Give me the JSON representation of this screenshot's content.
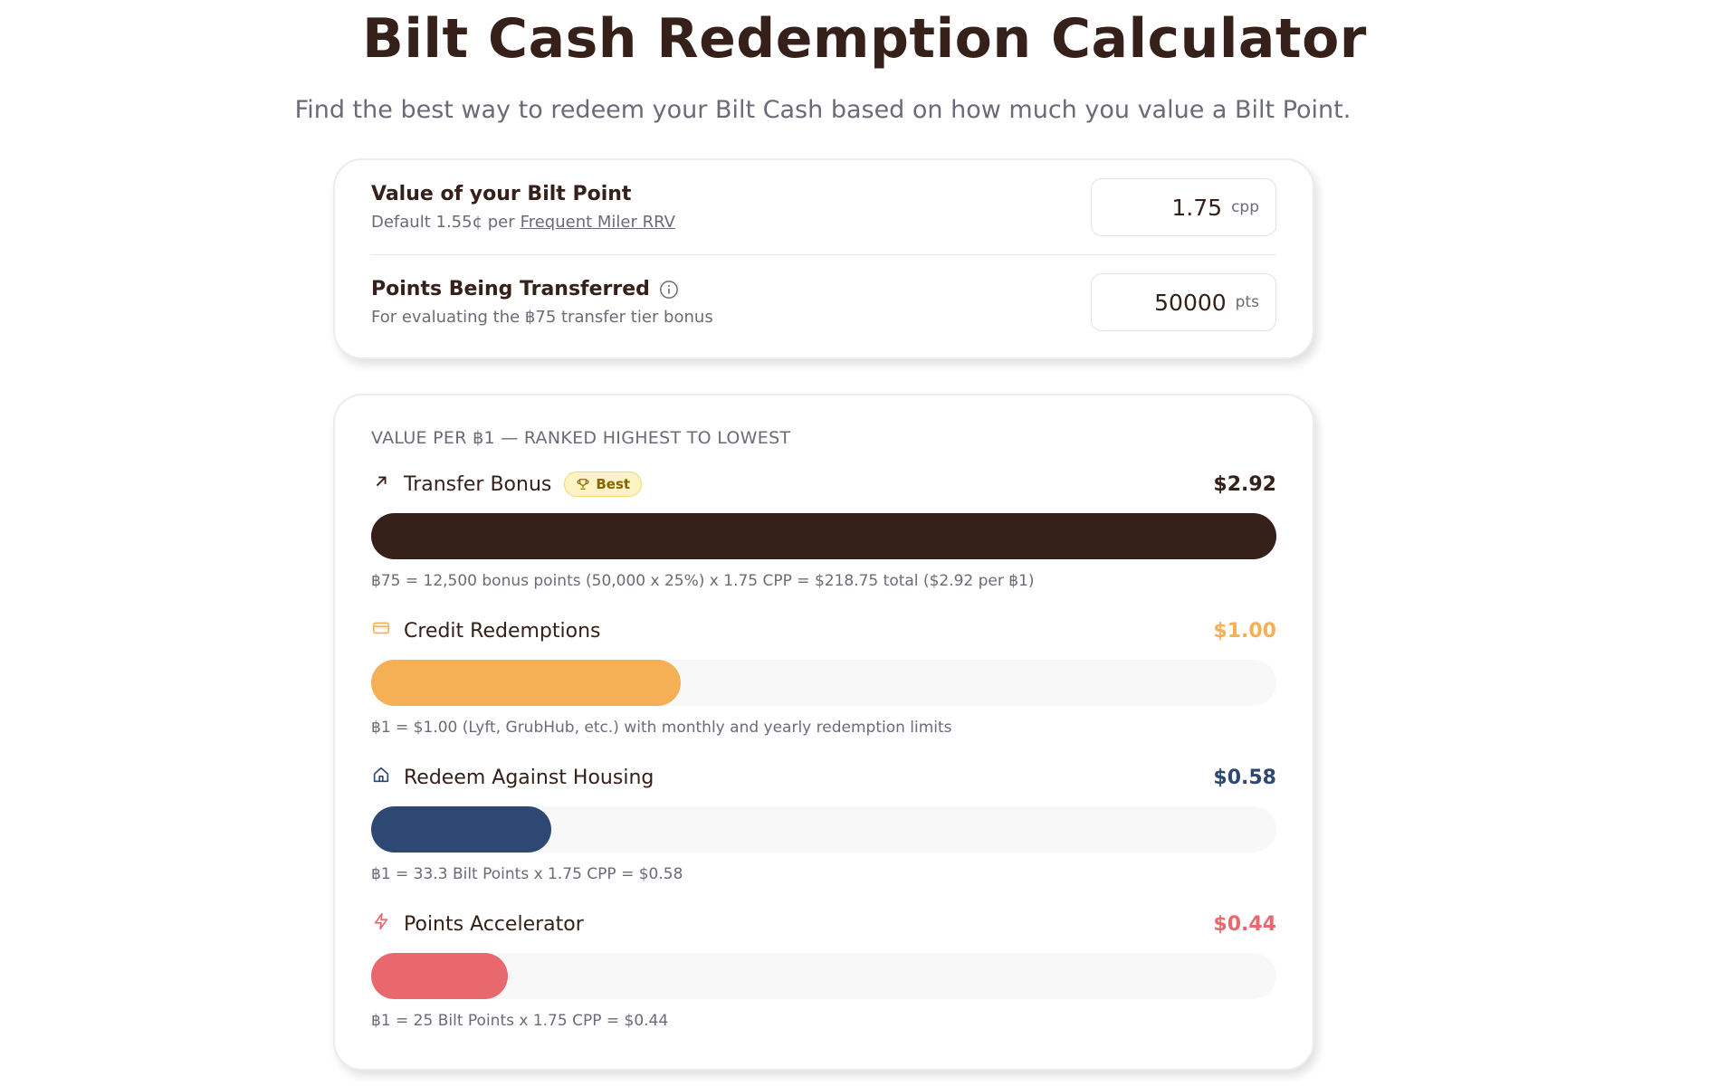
{
  "header": {
    "title": "Bilt Cash Redemption Calculator",
    "subtitle": "Find the best way to redeem your Bilt Cash based on how much you value a Bilt Point."
  },
  "inputs": [
    {
      "label": "Value of your Bilt Point",
      "note": "Default 1.55¢ per",
      "note_link": "Frequent Miler RRV",
      "value": 1.75,
      "unit": "cpp"
    },
    {
      "label": "Points Being Transferred",
      "note": "For evaluating the ฿75 transfer tier bonus",
      "value": 50000,
      "unit": "pts"
    }
  ],
  "results": {
    "heading": "VALUE PER ฿1 — RANKED HIGHEST TO LOWEST",
    "items": [
      {
        "name": "Transfer Bonus",
        "badge": "Best",
        "value": 2.92,
        "value_label": "$2.92",
        "color": "#35201a",
        "note": "฿75 = 12,500 bonus points (50,000 x 25%) x 1.75 CPP = $218.75 total ($2.92 per ฿1)"
      },
      {
        "name": "Credit Redemptions",
        "value": 1.0,
        "value_label": "$1.00",
        "color": "#f5b056",
        "note": "฿1 = $1.00 (Lyft, GrubHub, etc.) with monthly and yearly redemption limits"
      },
      {
        "name": "Redeem Against Housing",
        "value": 0.58,
        "value_label": "$0.58",
        "color": "#2e4874",
        "note": "฿1 = 33.3 Bilt Points x 1.75 CPP = $0.58"
      },
      {
        "name": "Points Accelerator",
        "value": 0.44,
        "value_label": "$0.44",
        "color": "#e9686d",
        "note": "฿1 = 25 Bilt Points x 1.75 CPP = $0.44"
      }
    ]
  }
}
